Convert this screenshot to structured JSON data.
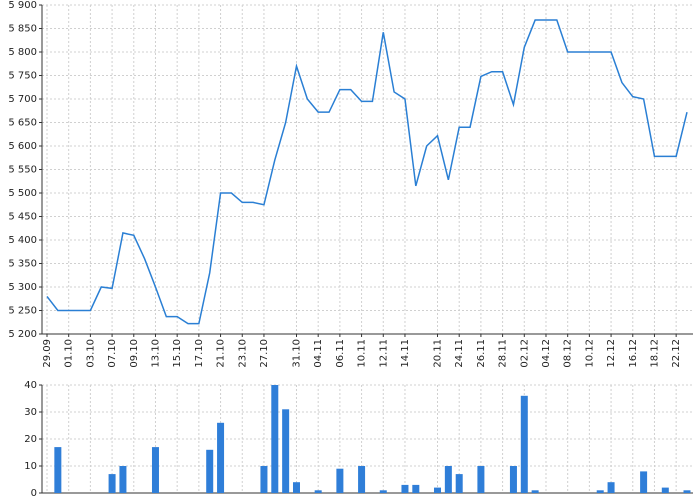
{
  "chart_data": [
    {
      "type": "line",
      "categories": [
        "29.09",
        null,
        "01.10",
        null,
        "03.10",
        null,
        "07.10",
        null,
        "09.10",
        null,
        "13.10",
        null,
        "15.10",
        null,
        "17.10",
        null,
        "21.10",
        null,
        "23.10",
        null,
        "27.10",
        null,
        null,
        "31.10",
        null,
        "04.11",
        null,
        "06.11",
        null,
        "10.11",
        null,
        "12.11",
        null,
        "14.11",
        null,
        null,
        "20.11",
        null,
        "24.11",
        null,
        "26.11",
        null,
        "28.11",
        null,
        "02.12",
        null,
        "04.12",
        null,
        "08.12",
        null,
        "10.12",
        null,
        "12.12",
        null,
        "16.12",
        null,
        "18.12",
        null,
        "22.12",
        null
      ],
      "values": [
        5280,
        5250,
        5250,
        5250,
        5250,
        5300,
        5297,
        5415,
        5410,
        5360,
        5300,
        5237,
        5237,
        5222,
        5222,
        5330,
        5500,
        5500,
        5480,
        5480,
        5475,
        5570,
        5650,
        5770,
        5700,
        5672,
        5672,
        5720,
        5720,
        5695,
        5695,
        5842,
        5715,
        5700,
        5515,
        5600,
        5622,
        5528,
        5640,
        5640,
        5748,
        5758,
        5758,
        5688,
        5810,
        5868,
        5868,
        5868,
        5800,
        5800,
        5800,
        5800,
        5800,
        5735,
        5705,
        5700,
        5578,
        5578,
        5578,
        5672
      ],
      "color": "#2a7fd4",
      "ylim": [
        5200,
        5900
      ],
      "yticks": [
        {
          "value": 5200,
          "label": "5 200"
        },
        {
          "value": 5250,
          "label": "5 250"
        },
        {
          "value": 5300,
          "label": "5 300"
        },
        {
          "value": 5350,
          "label": "5 350"
        },
        {
          "value": 5400,
          "label": "5 400"
        },
        {
          "value": 5450,
          "label": "5 450"
        },
        {
          "value": 5500,
          "label": "5 500"
        },
        {
          "value": 5550,
          "label": "5 550"
        },
        {
          "value": 5600,
          "label": "5 600"
        },
        {
          "value": 5650,
          "label": "5 650"
        },
        {
          "value": 5700,
          "label": "5 700"
        },
        {
          "value": 5750,
          "label": "5 750"
        },
        {
          "value": 5800,
          "label": "5 800"
        },
        {
          "value": 5850,
          "label": "5 850"
        },
        {
          "value": 5900,
          "label": "5 900"
        }
      ],
      "grid": true
    },
    {
      "type": "bar",
      "values": [
        0,
        17,
        0,
        0,
        0,
        0,
        7,
        10,
        0,
        0,
        17,
        0,
        0,
        0,
        0,
        16,
        26,
        0,
        0,
        0,
        10,
        40,
        31,
        4,
        0,
        1,
        0,
        9,
        0,
        10,
        0,
        1,
        0,
        3,
        3,
        0,
        2,
        10,
        7,
        0,
        10,
        0,
        0,
        10,
        36,
        1,
        0,
        0,
        0,
        0,
        0,
        1,
        4,
        0,
        0,
        8,
        0,
        2,
        0,
        1
      ],
      "color": "#2f7ed8",
      "ylim": [
        0,
        40
      ],
      "yticks": [
        0,
        10,
        20,
        30,
        40
      ],
      "grid": true
    }
  ]
}
